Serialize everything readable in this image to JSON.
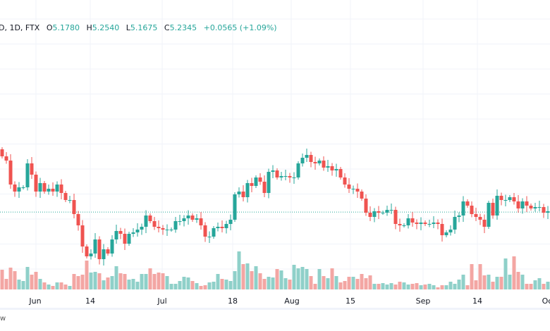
{
  "legend": {
    "symbol": "D, 1D, FTX",
    "open_label": "O",
    "open": "5.1780",
    "high_label": "H",
    "high": "5.2540",
    "low_label": "L",
    "low": "5.1675",
    "close_label": "C",
    "close": "5.2345",
    "change": "+0.0565 (+1.09%)"
  },
  "bottom_text": "w",
  "colors": {
    "up": "#26a69a",
    "down": "#ef5350",
    "up_volume": "#8fd0c9",
    "down_volume": "#f3a6a3",
    "grid": "#f0f3fa",
    "price_line": "#26a69a"
  },
  "chart_data": {
    "type": "candlestick",
    "title": "",
    "timeframe": "1D",
    "x_ticks": [
      "Jun",
      "14",
      "Jul",
      "18",
      "Aug",
      "15",
      "Sep",
      "14",
      "Oc"
    ],
    "current_price": 5.2345,
    "first_open": 5.68,
    "closes": [
      5.63,
      5.6,
      5.43,
      5.38,
      5.41,
      5.41,
      5.58,
      5.5,
      5.38,
      5.44,
      5.38,
      5.4,
      5.38,
      5.43,
      5.37,
      5.32,
      5.32,
      5.22,
      5.14,
      4.99,
      4.92,
      4.94,
      5.04,
      4.9,
      4.97,
      4.94,
      5.04,
      5.1,
      5.08,
      5.01,
      5.08,
      5.09,
      5.11,
      5.13,
      5.21,
      5.17,
      5.13,
      5.12,
      5.11,
      5.11,
      5.11,
      5.17,
      5.17,
      5.19,
      5.21,
      5.18,
      5.19,
      5.14,
      5.06,
      5.06,
      5.12,
      5.13,
      5.12,
      5.15,
      5.18,
      5.36,
      5.38,
      5.34,
      5.44,
      5.42,
      5.48,
      5.45,
      5.37,
      5.52,
      5.53,
      5.48,
      5.49,
      5.49,
      5.48,
      5.48,
      5.58,
      5.62,
      5.64,
      5.59,
      5.58,
      5.6,
      5.55,
      5.56,
      5.53,
      5.54,
      5.48,
      5.43,
      5.4,
      5.4,
      5.38,
      5.33,
      5.23,
      5.2,
      5.24,
      5.23,
      5.23,
      5.25,
      5.25,
      5.15,
      5.14,
      5.14,
      5.19,
      5.16,
      5.15,
      5.16,
      5.15,
      5.15,
      5.16,
      5.15,
      5.07,
      5.09,
      5.11,
      5.2,
      5.21,
      5.31,
      5.28,
      5.22,
      5.2,
      5.18,
      5.13,
      5.3,
      5.21,
      5.35,
      5.32,
      5.32,
      5.34,
      5.31,
      5.26,
      5.31,
      5.28,
      5.26,
      5.27,
      5.27,
      5.23,
      5.24
    ],
    "volumes": [
      28,
      15,
      31,
      26,
      14,
      12,
      32,
      21,
      25,
      15,
      10,
      7,
      5,
      10,
      10,
      7,
      5,
      22,
      19,
      21,
      41,
      24,
      25,
      23,
      13,
      17,
      19,
      33,
      23,
      22,
      14,
      15,
      11,
      22,
      22,
      30,
      22,
      24,
      23,
      19,
      8,
      8,
      12,
      18,
      17,
      12,
      9,
      5,
      6,
      10,
      11,
      22,
      15,
      14,
      12,
      26,
      54,
      36,
      37,
      26,
      33,
      23,
      15,
      18,
      17,
      29,
      27,
      16,
      14,
      35,
      30,
      32,
      29,
      19,
      8,
      29,
      19,
      16,
      30,
      19,
      10,
      12,
      18,
      18,
      15,
      22,
      16,
      20,
      8,
      8,
      9,
      7,
      9,
      7,
      11,
      10,
      7,
      8,
      9,
      6,
      7,
      8,
      6,
      3,
      6,
      6,
      11,
      8,
      14,
      21,
      6,
      36,
      13,
      36,
      20,
      21,
      11,
      18,
      18,
      44,
      21,
      47,
      25,
      21,
      8,
      8,
      13,
      16,
      8,
      11
    ],
    "grid": true
  }
}
